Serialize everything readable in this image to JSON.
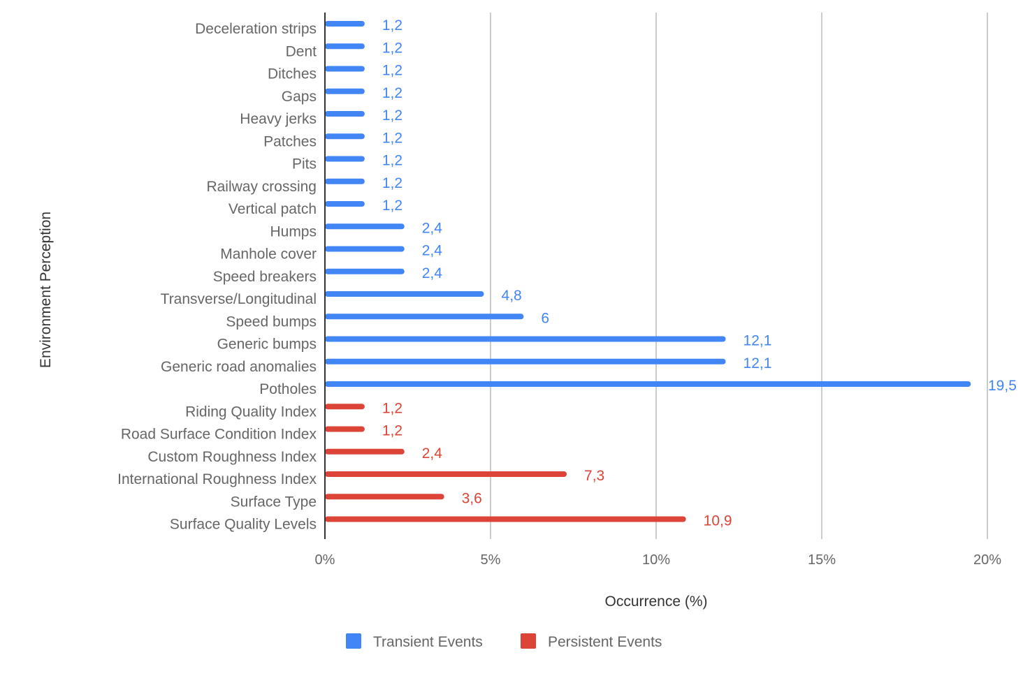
{
  "chart_data": {
    "type": "bar",
    "orientation": "horizontal",
    "title": "",
    "xlabel": "Occurrence (%)",
    "ylabel": "Environment Perception",
    "xlim": [
      0,
      20
    ],
    "x_ticks": [
      0,
      5,
      10,
      15,
      20
    ],
    "x_tick_labels": [
      "0%",
      "5%",
      "10%",
      "15%",
      "20%"
    ],
    "grid": "vertical",
    "legend_position": "bottom",
    "series": [
      {
        "name": "Transient Events",
        "color": "#4285F4"
      },
      {
        "name": "Persistent Events",
        "color": "#DB4437"
      }
    ],
    "bars": [
      {
        "category": "Deceleration strips",
        "value": 1.2,
        "label": "1,2",
        "series": 0
      },
      {
        "category": "Dent",
        "value": 1.2,
        "label": "1,2",
        "series": 0
      },
      {
        "category": "Ditches",
        "value": 1.2,
        "label": "1,2",
        "series": 0
      },
      {
        "category": "Gaps",
        "value": 1.2,
        "label": "1,2",
        "series": 0
      },
      {
        "category": "Heavy jerks",
        "value": 1.2,
        "label": "1,2",
        "series": 0
      },
      {
        "category": "Patches",
        "value": 1.2,
        "label": "1,2",
        "series": 0
      },
      {
        "category": "Pits",
        "value": 1.2,
        "label": "1,2",
        "series": 0
      },
      {
        "category": "Railway crossing",
        "value": 1.2,
        "label": "1,2",
        "series": 0
      },
      {
        "category": "Vertical patch",
        "value": 1.2,
        "label": "1,2",
        "series": 0
      },
      {
        "category": "Humps",
        "value": 2.4,
        "label": "2,4",
        "series": 0
      },
      {
        "category": "Manhole cover",
        "value": 2.4,
        "label": "2,4",
        "series": 0
      },
      {
        "category": "Speed breakers",
        "value": 2.4,
        "label": "2,4",
        "series": 0
      },
      {
        "category": "Transverse/Longitudinal",
        "value": 4.8,
        "label": "4,8",
        "series": 0
      },
      {
        "category": "Speed bumps",
        "value": 6,
        "label": "6",
        "series": 0
      },
      {
        "category": "Generic bumps",
        "value": 12.1,
        "label": "12,1",
        "series": 0
      },
      {
        "category": "Generic road anomalies",
        "value": 12.1,
        "label": "12,1",
        "series": 0
      },
      {
        "category": "Potholes",
        "value": 19.5,
        "label": "19,5",
        "series": 0
      },
      {
        "category": "Riding Quality Index",
        "value": 1.2,
        "label": "1,2",
        "series": 1
      },
      {
        "category": "Road Surface Condition Index",
        "value": 1.2,
        "label": "1,2",
        "series": 1
      },
      {
        "category": "Custom Roughness Index",
        "value": 2.4,
        "label": "2,4",
        "series": 1
      },
      {
        "category": "International Roughness Index",
        "value": 7.3,
        "label": "7,3",
        "series": 1
      },
      {
        "category": "Surface Type",
        "value": 3.6,
        "label": "3,6",
        "series": 1
      },
      {
        "category": "Surface Quality Levels",
        "value": 10.9,
        "label": "10,9",
        "series": 1
      }
    ]
  }
}
